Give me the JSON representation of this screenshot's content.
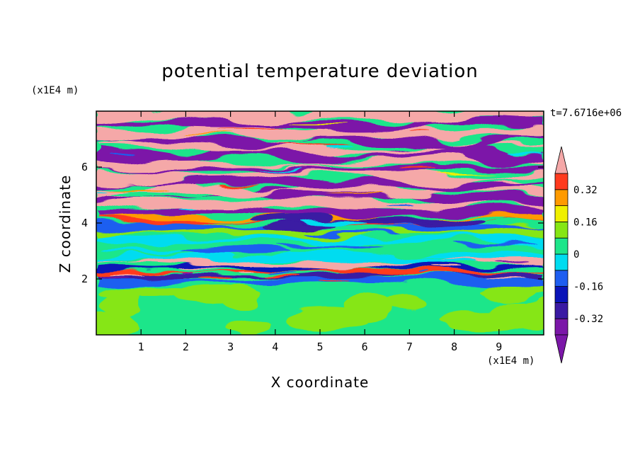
{
  "chart_data": {
    "type": "heatmap",
    "title": "potential temperature deviation",
    "xlabel": "X coordinate",
    "ylabel": "Z coordinate",
    "x_unit": "(x1E4 m)",
    "y_unit": "(x1E4 m)",
    "time_label": "t=7.6716e+06",
    "xlim": [
      0,
      10
    ],
    "ylim": [
      0,
      8
    ],
    "x_ticks": [
      "1",
      "2",
      "3",
      "4",
      "5",
      "6",
      "7",
      "8",
      "9"
    ],
    "x_tick_values": [
      1,
      2,
      3,
      4,
      5,
      6,
      7,
      8,
      9
    ],
    "y_ticks": [
      "2",
      "4",
      "6"
    ],
    "y_tick_values": [
      2,
      4,
      6
    ],
    "colorbar": {
      "tick_labels": [
        "0.32",
        "0.16",
        "0",
        "-0.16",
        "-0.32"
      ],
      "tick_values": [
        0.32,
        0.16,
        0,
        -0.16,
        -0.32
      ],
      "levels": [
        -0.4,
        -0.32,
        -0.24,
        -0.16,
        -0.08,
        0,
        0.08,
        0.16,
        0.24,
        0.32,
        0.4
      ],
      "colors": [
        "#7b17a8",
        "#3a1aa3",
        "#0a14b8",
        "#1e5ef0",
        "#00dcf0",
        "#1ee68a",
        "#86e614",
        "#f0f000",
        "#ff9a00",
        "#ff3a1e",
        "#f5a8a8"
      ],
      "extend": "both"
    },
    "field_description_regions": [
      {
        "z_range": [
          0,
          1.9
        ],
        "dominant_level": [
          0,
          0.08
        ]
      },
      {
        "z_range": [
          1.9,
          2.6
        ],
        "dominant_level": [
          -0.4,
          0.4
        ]
      },
      {
        "z_range": [
          2.6,
          4.1
        ],
        "dominant_level": [
          -0.32,
          0.16
        ]
      },
      {
        "z_range": [
          4.1,
          8.0
        ],
        "dominant_level": [
          -0.4,
          0.4
        ]
      }
    ]
  }
}
